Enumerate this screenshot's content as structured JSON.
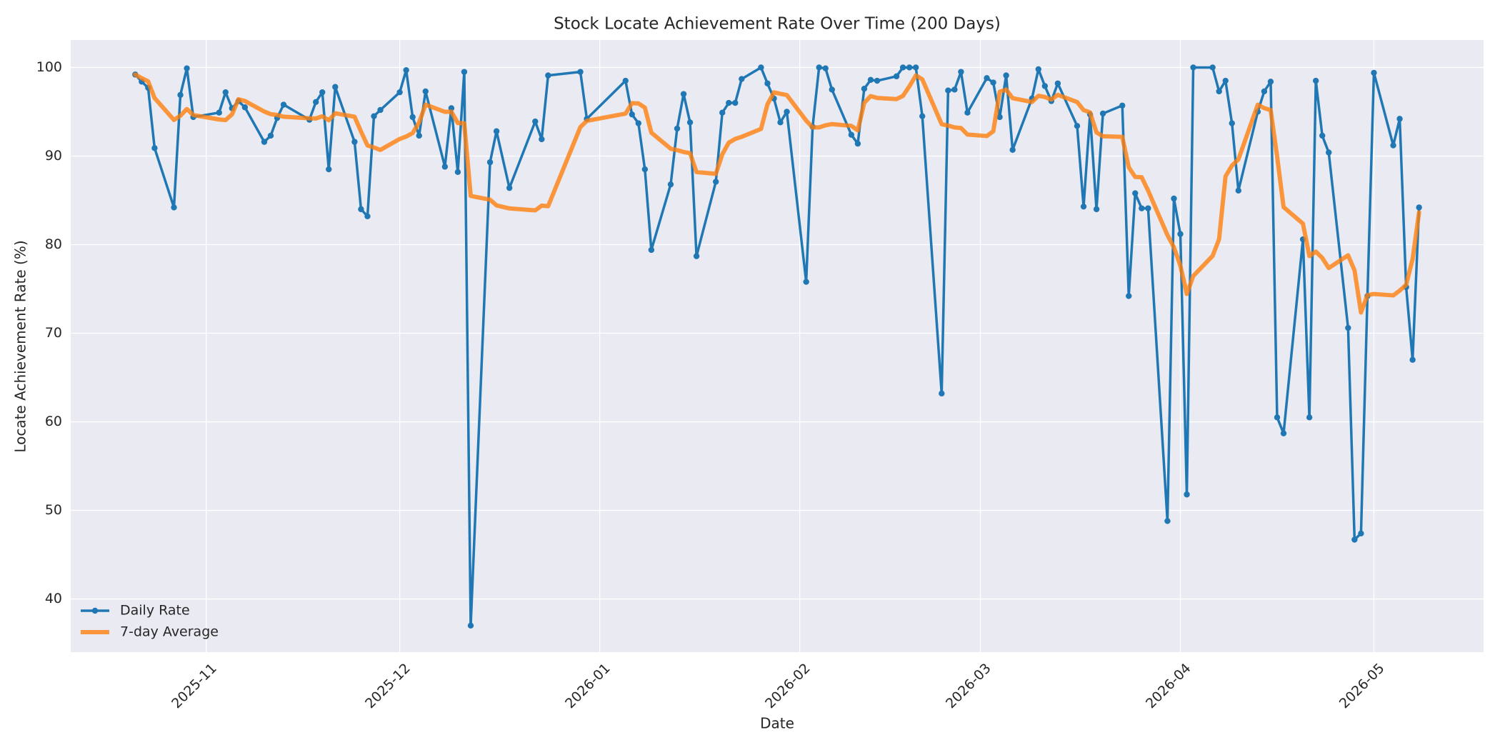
{
  "chart_data": {
    "type": "line",
    "title": "Stock Locate Achievement Rate Over Time (200 Days)",
    "xlabel": "Date",
    "ylabel": "Locate Achievement Rate (%)",
    "x": [
      "2025-10-21",
      "2025-10-22",
      "2025-10-23",
      "2025-10-24",
      "2025-10-27",
      "2025-10-28",
      "2025-10-29",
      "2025-10-30",
      "2025-11-03",
      "2025-11-04",
      "2025-11-05",
      "2025-11-06",
      "2025-11-07",
      "2025-11-10",
      "2025-11-11",
      "2025-11-12",
      "2025-11-13",
      "2025-11-17",
      "2025-11-18",
      "2025-11-19",
      "2025-11-20",
      "2025-11-21",
      "2025-11-24",
      "2025-11-25",
      "2025-11-26",
      "2025-11-27",
      "2025-11-28",
      "2025-12-01",
      "2025-12-02",
      "2025-12-03",
      "2025-12-04",
      "2025-12-05",
      "2025-12-08",
      "2025-12-09",
      "2025-12-10",
      "2025-12-11",
      "2025-12-12",
      "2025-12-15",
      "2025-12-16",
      "2025-12-18",
      "2025-12-22",
      "2025-12-23",
      "2025-12-24",
      "2025-12-29",
      "2025-12-30",
      "2026-01-05",
      "2026-01-06",
      "2026-01-07",
      "2026-01-08",
      "2026-01-09",
      "2026-01-12",
      "2026-01-13",
      "2026-01-14",
      "2026-01-15",
      "2026-01-16",
      "2026-01-19",
      "2026-01-20",
      "2026-01-21",
      "2026-01-22",
      "2026-01-23",
      "2026-01-26",
      "2026-01-27",
      "2026-01-28",
      "2026-01-29",
      "2026-01-30",
      "2026-02-02",
      "2026-02-03",
      "2026-02-04",
      "2026-02-05",
      "2026-02-06",
      "2026-02-09",
      "2026-02-10",
      "2026-02-11",
      "2026-02-12",
      "2026-02-13",
      "2026-02-16",
      "2026-02-17",
      "2026-02-18",
      "2026-02-19",
      "2026-02-20",
      "2026-02-23",
      "2026-02-24",
      "2026-02-25",
      "2026-02-26",
      "2026-02-27",
      "2026-03-02",
      "2026-03-03",
      "2026-03-04",
      "2026-03-05",
      "2026-03-06",
      "2026-03-09",
      "2026-03-10",
      "2026-03-11",
      "2026-03-12",
      "2026-03-13",
      "2026-03-16",
      "2026-03-17",
      "2026-03-18",
      "2026-03-19",
      "2026-03-20",
      "2026-03-23",
      "2026-03-24",
      "2026-03-25",
      "2026-03-26",
      "2026-03-27",
      "2026-03-30",
      "2026-03-31",
      "2026-04-01",
      "2026-04-02",
      "2026-04-03",
      "2026-04-06",
      "2026-04-07",
      "2026-04-08",
      "2026-04-09",
      "2026-04-10",
      "2026-04-13",
      "2026-04-14",
      "2026-04-15",
      "2026-04-16",
      "2026-04-17",
      "2026-04-20",
      "2026-04-21",
      "2026-04-22",
      "2026-04-23",
      "2026-04-24",
      "2026-04-27",
      "2026-04-28",
      "2026-04-29",
      "2026-04-30",
      "2026-05-01",
      "2026-05-04",
      "2026-05-05",
      "2026-05-06",
      "2026-05-07",
      "2026-05-08"
    ],
    "series": [
      {
        "name": "Daily Rate",
        "color": "#1f77b4",
        "marker": true,
        "values": [
          99.2,
          98.4,
          97.7,
          90.9,
          84.2,
          96.9,
          99.9,
          94.4,
          94.9,
          97.2,
          95.4,
          96.2,
          95.5,
          91.6,
          92.3,
          94.3,
          95.8,
          94.1,
          96.1,
          97.2,
          88.5,
          97.8,
          91.6,
          84.0,
          83.2,
          94.5,
          95.2,
          97.2,
          99.7,
          94.4,
          92.3,
          97.3,
          88.8,
          95.4,
          88.2,
          99.5,
          37.0,
          89.3,
          92.8,
          86.4,
          93.9,
          91.9,
          99.1,
          99.5,
          94.2,
          98.5,
          94.7,
          93.7,
          88.5,
          79.4,
          86.8,
          93.1,
          97.0,
          93.8,
          78.7,
          87.1,
          94.9,
          96.0,
          96.0,
          98.7,
          100.0,
          98.2,
          96.5,
          93.8,
          95.0,
          75.8,
          93.3,
          100.0,
          99.9,
          97.5,
          92.4,
          91.4,
          97.6,
          98.6,
          98.5,
          99.0,
          100.0,
          100.0,
          100.0,
          94.5,
          63.2,
          97.4,
          97.5,
          99.5,
          94.9,
          98.8,
          98.3,
          94.4,
          99.1,
          90.7,
          96.5,
          99.8,
          97.9,
          96.2,
          98.2,
          93.4,
          84.3,
          94.7,
          84.0,
          94.8,
          95.7,
          74.2,
          85.8,
          84.1,
          84.1,
          48.8,
          85.2,
          81.2,
          51.8,
          100.0,
          100.0,
          97.3,
          98.5,
          93.7,
          86.1,
          95.0,
          97.3,
          98.4,
          60.5,
          58.7,
          80.6,
          60.5,
          98.5,
          92.3,
          90.4,
          70.6,
          46.7,
          47.4,
          74.2,
          99.4,
          91.2,
          94.2,
          75.2,
          67.0,
          84.2
        ]
      },
      {
        "name": "7-day Average",
        "color": "#ff7f0e",
        "marker": false,
        "values": [
          99.2,
          98.8,
          98.43,
          96.55,
          94.08,
          94.55,
          95.31,
          94.63,
          94.13,
          94.06,
          94.7,
          96.41,
          96.21,
          95.03,
          94.73,
          94.64,
          94.44,
          94.26,
          94.24,
          94.49,
          94.04,
          94.83,
          94.44,
          92.76,
          91.2,
          90.97,
          90.69,
          91.93,
          92.2,
          92.6,
          93.79,
          95.8,
          94.99,
          95.01,
          93.73,
          93.7,
          85.5,
          85.07,
          84.43,
          84.09,
          83.87,
          84.4,
          84.34,
          93.27,
          93.97,
          94.79,
          95.97,
          95.94,
          95.46,
          92.64,
          90.83,
          90.67,
          90.46,
          90.33,
          88.19,
          87.99,
          90.2,
          91.51,
          91.93,
          92.17,
          93.06,
          95.84,
          97.19,
          97.03,
          96.89,
          94.0,
          93.23,
          93.23,
          93.47,
          93.61,
          93.41,
          92.9,
          96.01,
          96.77,
          96.56,
          96.43,
          96.79,
          97.87,
          99.1,
          98.66,
          93.6,
          93.44,
          93.23,
          93.16,
          92.43,
          92.26,
          92.8,
          97.26,
          97.5,
          96.53,
          96.1,
          96.8,
          96.67,
          96.37,
          96.91,
          96.1,
          95.19,
          94.93,
          92.67,
          92.23,
          92.16,
          88.73,
          87.64,
          87.61,
          86.1,
          81.07,
          79.7,
          77.63,
          74.43,
          76.46,
          78.73,
          80.61,
          87.71,
          88.93,
          89.63,
          95.8,
          95.41,
          95.19,
          89.93,
          84.24,
          82.37,
          78.71,
          79.21,
          78.5,
          77.36,
          78.8,
          77.09,
          72.34,
          74.3,
          74.43,
          74.27,
          74.81,
          75.47,
          78.37,
          83.63
        ]
      }
    ],
    "xlim": [
      "2025-10-11",
      "2026-05-18"
    ],
    "xticks": [
      {
        "value": "2025-11-01",
        "label": "2025-11"
      },
      {
        "value": "2025-12-01",
        "label": "2025-12"
      },
      {
        "value": "2026-01-01",
        "label": "2026-01"
      },
      {
        "value": "2026-02-01",
        "label": "2026-02"
      },
      {
        "value": "2026-03-01",
        "label": "2026-03"
      },
      {
        "value": "2026-04-01",
        "label": "2026-04"
      },
      {
        "value": "2026-05-01",
        "label": "2026-05"
      }
    ],
    "ylim": [
      34,
      103.1
    ],
    "yticks": [
      40,
      50,
      60,
      70,
      80,
      90,
      100
    ],
    "grid": true,
    "legend": "lower left"
  }
}
